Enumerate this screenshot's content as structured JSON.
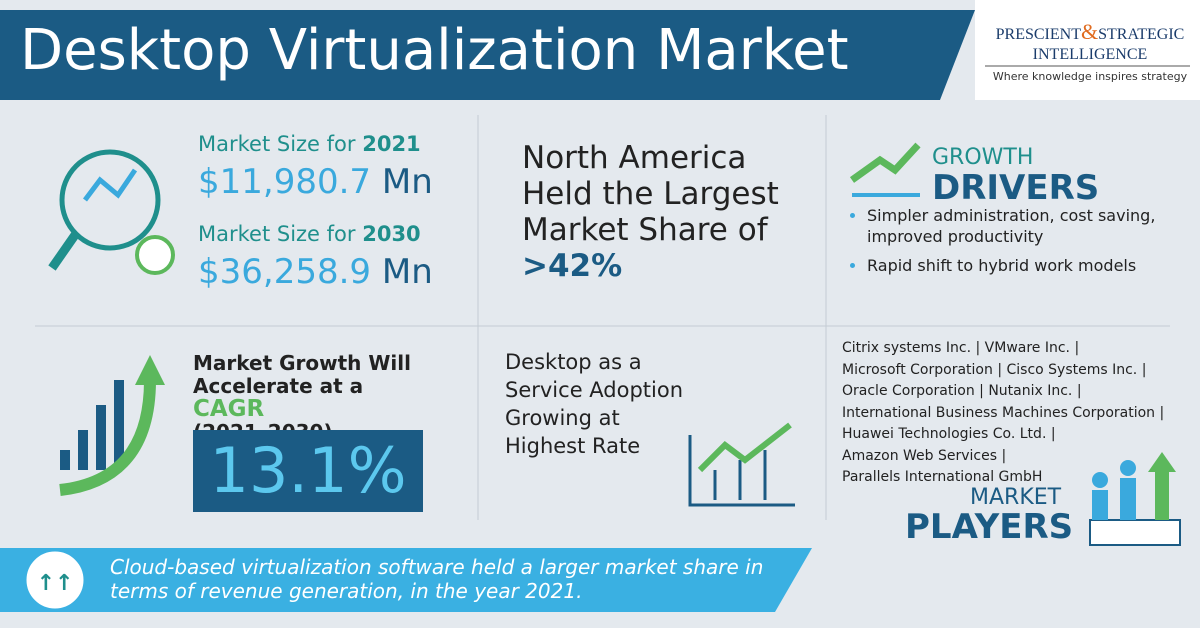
{
  "header": {
    "title": "Desktop Virtualization Market"
  },
  "logo": {
    "word1": "PRESCIENT",
    "amp": "&",
    "word2": "STRATEGIC",
    "word3": "INTELLIGENCE",
    "tagline": "Where knowledge inspires strategy"
  },
  "market_size": [
    {
      "label": "Market Size for",
      "year": "2021",
      "value": "$11,980.7",
      "unit": "Mn"
    },
    {
      "label": "Market Size for",
      "year": "2030",
      "value": "$36,258.9",
      "unit": "Mn"
    }
  ],
  "region": {
    "text": "North America Held the Largest Market Share of",
    "value": ">42%"
  },
  "drivers": {
    "title1": "GROWTH",
    "title2": "DRIVERS",
    "items": [
      "Simpler administration, cost saving, improved productivity",
      "Rapid shift to hybrid work models"
    ]
  },
  "cagr": {
    "text": "Market Growth Will Accelerate at a",
    "highlight": "CAGR",
    "period": "(2021–2030)",
    "value": "13.1%"
  },
  "segment": {
    "text": "Desktop as a Service Adoption Growing at Highest Rate"
  },
  "players": {
    "lines": [
      "Citrix systems Inc. | VMware Inc. |",
      "Microsoft Corporation | Cisco Systems Inc. |",
      "Oracle Corporation | Nutanix Inc. |",
      "International Business Machines Corporation |",
      "Huawei Technologies Co. Ltd. |",
      "Amazon Web Services |",
      "Parallels International GmbH"
    ],
    "title1": "MARKET",
    "title2": "PLAYERS"
  },
  "footer": {
    "text": "Cloud-based virtualization software held a larger market share in terms of revenue generation, in the year 2021."
  }
}
